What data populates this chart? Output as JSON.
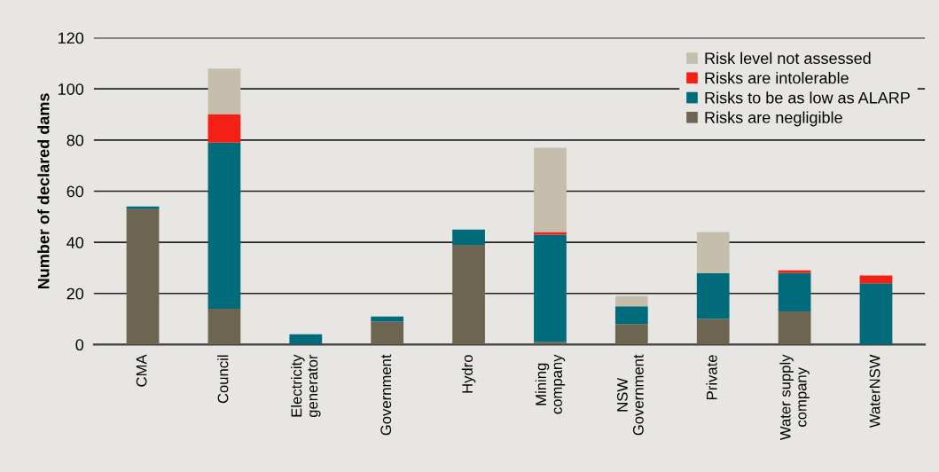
{
  "chart_data": {
    "type": "bar",
    "stacked": true,
    "ylabel": "Number of declared dams",
    "categories": [
      "CMA",
      "Council",
      "Electricity\ngenerator",
      "Government",
      "Hydro",
      "Mining\ncompany",
      "NSW\nGovernment",
      "Private",
      "Water supply\ncompany",
      "WaterNSW"
    ],
    "series": [
      {
        "name": "Risks are negligible",
        "color": "#6e6550",
        "values": [
          53,
          14,
          0,
          9,
          39,
          1,
          8,
          10,
          13,
          0
        ]
      },
      {
        "name": "Risks to be as low as ALARP",
        "color": "#006b7a",
        "values": [
          1,
          65,
          4,
          2,
          6,
          42,
          7,
          18,
          15,
          24
        ]
      },
      {
        "name": "Risks are intolerable",
        "color": "#f52014",
        "values": [
          0,
          11,
          0,
          0,
          0,
          1,
          0,
          0,
          1,
          3
        ]
      },
      {
        "name": "Risk level not assessed",
        "color": "#c5bead",
        "values": [
          0,
          18,
          0,
          0,
          0,
          33,
          4,
          16,
          0,
          0
        ]
      }
    ],
    "ylim": [
      0,
      120
    ],
    "yticks": [
      0,
      20,
      40,
      60,
      80,
      100,
      120
    ],
    "grid": "y",
    "legend": "top right"
  }
}
